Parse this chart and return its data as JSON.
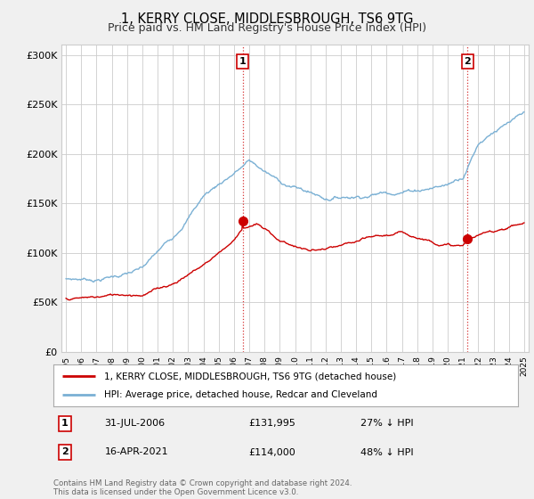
{
  "title": "1, KERRY CLOSE, MIDDLESBROUGH, TS6 9TG",
  "subtitle": "Price paid vs. HM Land Registry's House Price Index (HPI)",
  "legend_line1": "1, KERRY CLOSE, MIDDLESBROUGH, TS6 9TG (detached house)",
  "legend_line2": "HPI: Average price, detached house, Redcar and Cleveland",
  "annotation1_date": "31-JUL-2006",
  "annotation1_price": "£131,995",
  "annotation1_hpi": "27% ↓ HPI",
  "annotation1_year": 2006.58,
  "annotation2_date": "16-APR-2021",
  "annotation2_price": "£114,000",
  "annotation2_hpi": "48% ↓ HPI",
  "annotation2_year": 2021.29,
  "footer": "Contains HM Land Registry data © Crown copyright and database right 2024.\nThis data is licensed under the Open Government Licence v3.0.",
  "ylim": [
    0,
    310000
  ],
  "yticks": [
    0,
    50000,
    100000,
    150000,
    200000,
    250000,
    300000
  ],
  "ytick_labels": [
    "£0",
    "£50K",
    "£100K",
    "£150K",
    "£200K",
    "£250K",
    "£300K"
  ],
  "bg_color": "#f0f0f0",
  "plot_bg_color": "#ffffff",
  "red_color": "#cc0000",
  "blue_color": "#7ab0d4",
  "grid_color": "#cccccc",
  "xlim_left": 1994.7,
  "xlim_right": 2025.3
}
